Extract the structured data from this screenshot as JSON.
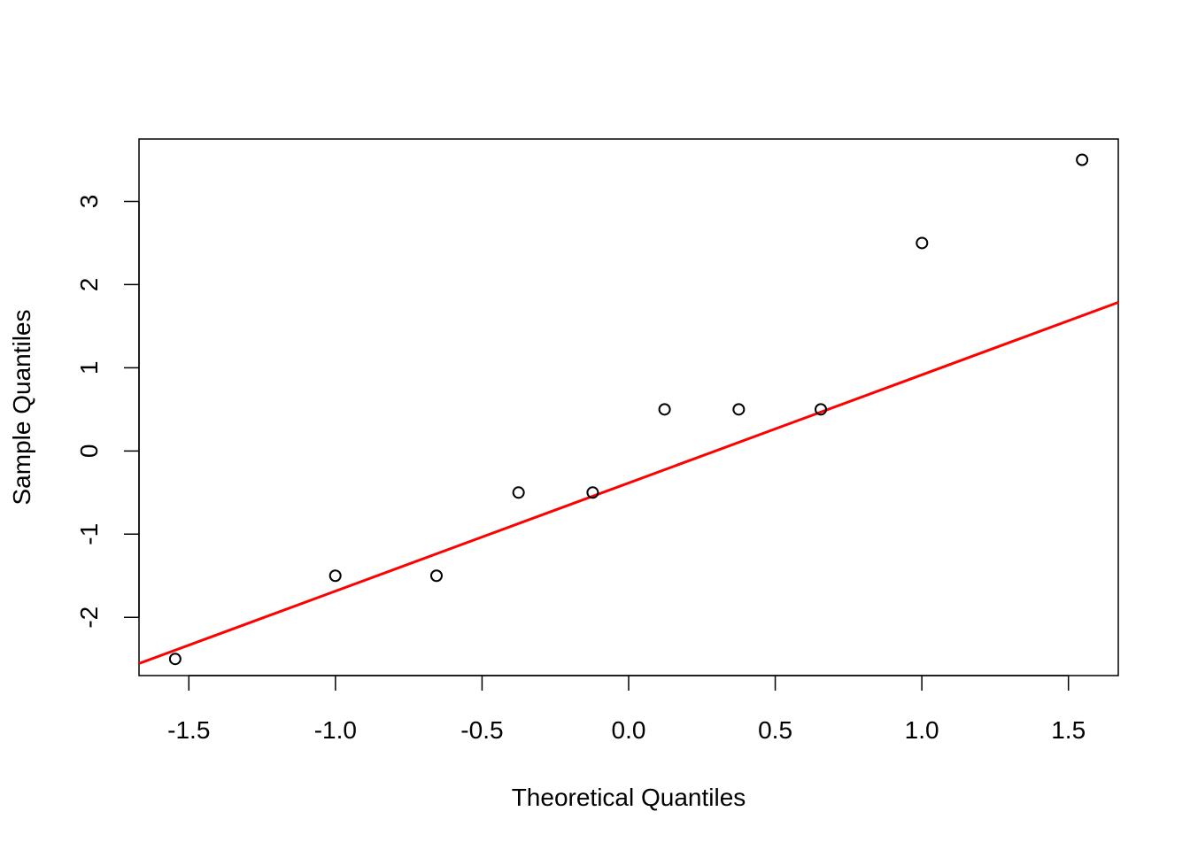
{
  "chart_data": {
    "type": "scatter",
    "xlabel": "Theoretical Quantiles",
    "ylabel": "Sample Quantiles",
    "xlim": [
      -1.67,
      1.67
    ],
    "ylim": [
      -2.7,
      3.75
    ],
    "x_ticks": [
      -1.5,
      -1.0,
      -0.5,
      0.0,
      0.5,
      1.0,
      1.5
    ],
    "x_tick_labels": [
      "-1.5",
      "-1.0",
      "-0.5",
      "0.0",
      "0.5",
      "1.0",
      "1.5"
    ],
    "y_ticks": [
      -2,
      -1,
      0,
      1,
      2,
      3
    ],
    "y_tick_labels": [
      "-2",
      "-1",
      "0",
      "1",
      "2",
      "3"
    ],
    "grid": false,
    "series": [
      {
        "marker": "open-circle",
        "color": "#000000",
        "x": [
          -1.5466,
          -1.0005,
          -0.6554,
          -0.3755,
          -0.1226,
          0.1226,
          0.3755,
          0.6554,
          1.0005,
          1.5466
        ],
        "y": [
          -2.5,
          -1.5,
          -1.5,
          -0.5,
          -0.5,
          0.5,
          0.5,
          0.5,
          2.5,
          3.5
        ]
      }
    ],
    "reference_line": {
      "color": "#ff0000",
      "intercept": -0.3846,
      "slope": 1.2998
    }
  }
}
